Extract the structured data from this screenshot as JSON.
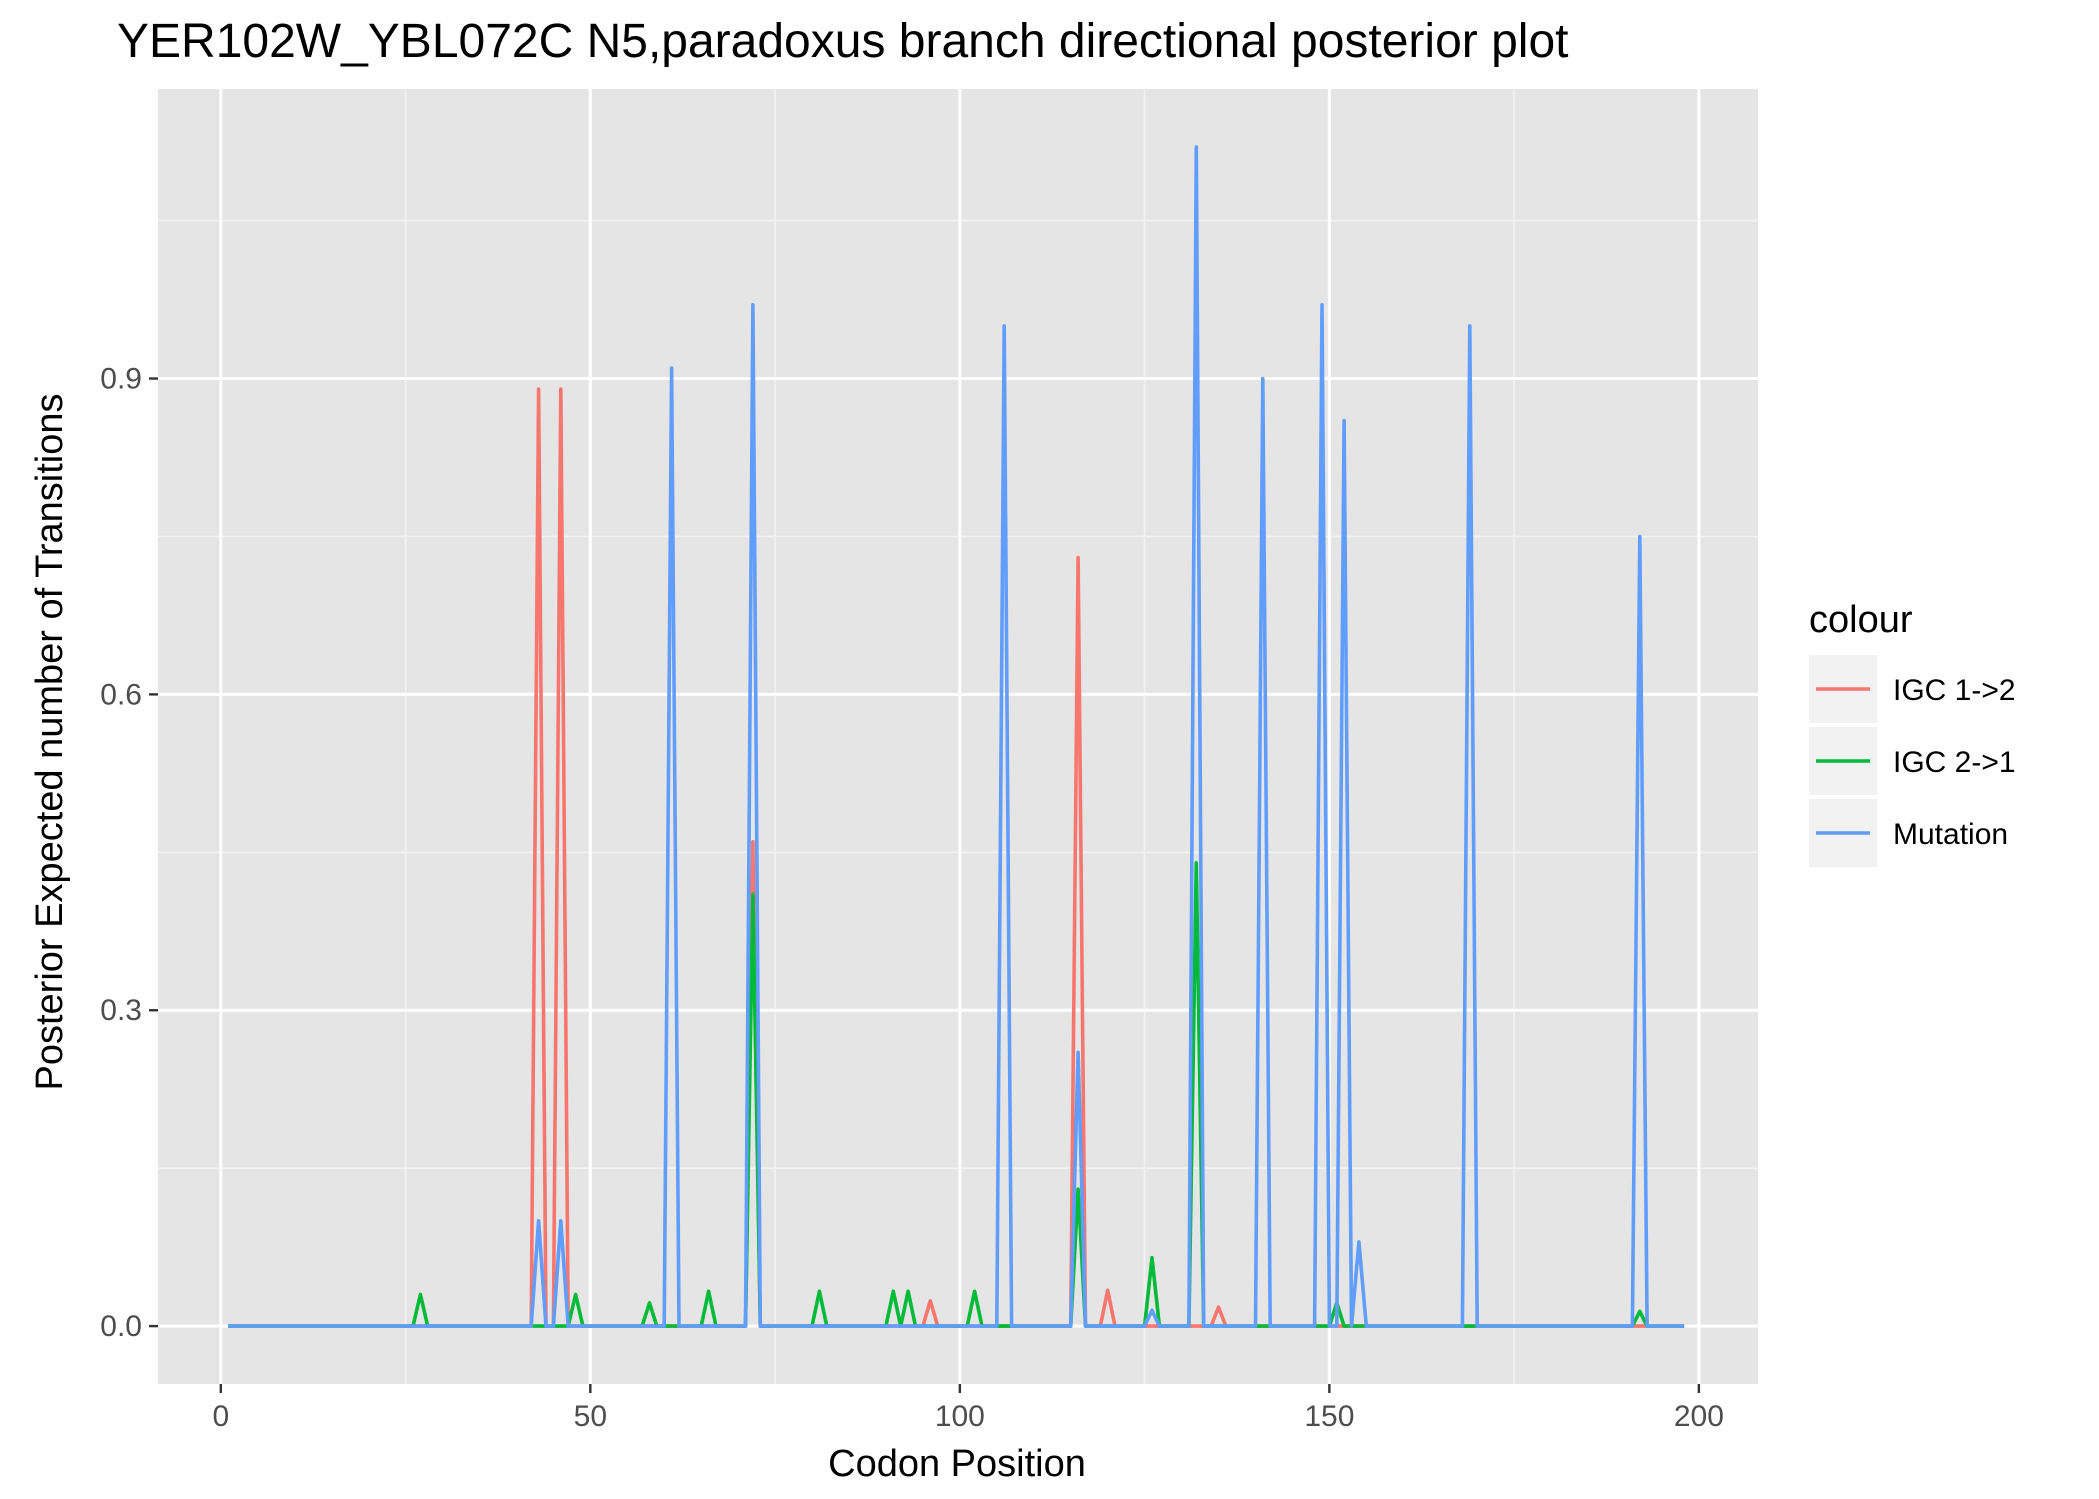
{
  "chart_data": {
    "type": "line",
    "title": "YER102W_YBL072C N5,paradoxus branch directional posterior plot",
    "xlabel": "Codon Position",
    "ylabel": "Posterior Expected number of Transitions",
    "xlim": [
      -8.5,
      208
    ],
    "ylim": [
      -0.055,
      1.175
    ],
    "x_ticks": [
      0,
      50,
      100,
      150,
      200
    ],
    "x_tick_labels": [
      "0",
      "50",
      "100",
      "150",
      "200"
    ],
    "y_ticks": [
      0.0,
      0.3,
      0.6,
      0.9
    ],
    "y_tick_labels": [
      "0.0",
      "0.3",
      "0.6",
      "0.9"
    ],
    "grid": true,
    "panel_background": "#e5e5e5",
    "legend": {
      "title": "colour",
      "position": "right"
    },
    "series": [
      {
        "name": "IGC 1->2",
        "color": "#f8766d",
        "x": [
          1,
          42,
          43,
          44,
          45,
          46,
          47,
          71,
          72,
          73,
          95,
          96,
          97,
          115,
          116,
          117,
          119,
          120,
          121,
          134,
          135,
          136,
          198
        ],
        "y": [
          0,
          0,
          0.89,
          0,
          0,
          0.89,
          0,
          0,
          0.46,
          0,
          0,
          0.024,
          0,
          0,
          0.73,
          0,
          0,
          0.034,
          0,
          0,
          0.018,
          0,
          0
        ]
      },
      {
        "name": "IGC 2->1",
        "color": "#00ba38",
        "x": [
          1,
          26,
          27,
          28,
          47,
          48,
          49,
          57,
          58,
          59,
          65,
          66,
          67,
          71,
          72,
          73,
          80,
          81,
          82,
          90,
          91,
          92,
          93,
          94,
          101,
          102,
          103,
          115,
          116,
          117,
          125,
          126,
          127,
          131,
          132,
          133,
          150,
          151,
          152,
          191,
          192,
          193,
          198
        ],
        "y": [
          0,
          0,
          0.03,
          0,
          0,
          0.03,
          0,
          0,
          0.022,
          0,
          0,
          0.033,
          0,
          0,
          0.41,
          0,
          0,
          0.033,
          0,
          0,
          0.033,
          0,
          0.033,
          0,
          0,
          0.033,
          0,
          0,
          0.13,
          0,
          0,
          0.065,
          0,
          0,
          0.44,
          0,
          0,
          0.022,
          0,
          0,
          0.014,
          0,
          0
        ]
      },
      {
        "name": "Mutation",
        "color": "#619cff",
        "x": [
          1,
          42,
          43,
          44,
          45,
          46,
          47,
          60,
          61,
          62,
          71,
          72,
          73,
          105,
          106,
          107,
          115,
          116,
          117,
          125,
          126,
          127,
          131,
          132,
          133,
          140,
          141,
          142,
          148,
          149,
          150,
          151,
          152,
          153,
          154,
          155,
          168,
          169,
          170,
          191,
          192,
          193,
          198
        ],
        "y": [
          0,
          0,
          0.1,
          0,
          0,
          0.1,
          0,
          0,
          0.91,
          0,
          0,
          0.97,
          0,
          0,
          0.95,
          0,
          0,
          0.26,
          0,
          0,
          0.015,
          0,
          0,
          1.12,
          0,
          0,
          0.9,
          0,
          0,
          0.97,
          0,
          0,
          0.86,
          0,
          0.08,
          0,
          0,
          0.95,
          0,
          0,
          0.75,
          0,
          0
        ]
      }
    ]
  }
}
